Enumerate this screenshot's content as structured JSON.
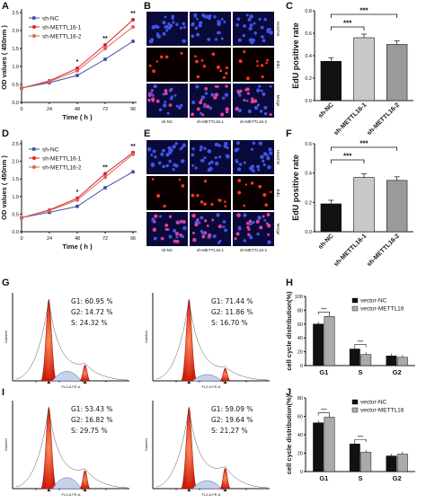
{
  "panels": {
    "A": "A",
    "B": "B",
    "C": "C",
    "D": "D",
    "E": "E",
    "F": "F",
    "G": "G",
    "H": "H",
    "I": "I",
    "J": "J"
  },
  "stain_labels": [
    "Hoechst",
    "EdU",
    "Merge"
  ],
  "sample_labels": [
    "sh-NC",
    "sh-METTL16-1",
    "sh-METTL16-2"
  ],
  "flow_stats": [
    [
      "G1: 60.95 %",
      "G2: 14.72 %",
      "S: 24.32 %"
    ],
    [
      "G1: 71.44 %",
      "G2: 11.86 %",
      "S: 16.70 %"
    ],
    [
      "G1: 53.43 %",
      "G2: 16.82 %",
      "S: 29.75 %"
    ],
    [
      "G1: 59.09 %",
      "G2: 19.64 %",
      "S: 21.27 %"
    ]
  ],
  "flow_axis": {
    "x": "FL2-A FE-A",
    "y": "Number"
  },
  "chart_data": [
    {
      "panel": "A",
      "type": "line",
      "x": [
        0,
        24,
        48,
        72,
        96
      ],
      "series": [
        {
          "name": "sh-NC",
          "values": [
            0.4,
            0.55,
            0.75,
            1.2,
            1.7
          ],
          "color": "#3a4fa6"
        },
        {
          "name": "sh-METTL16-1",
          "values": [
            0.4,
            0.6,
            0.95,
            1.6,
            2.3
          ],
          "color": "#d62728"
        },
        {
          "name": "sh-METTL16-2",
          "values": [
            0.4,
            0.58,
            0.88,
            1.5,
            2.1
          ],
          "color": "#e0605a"
        }
      ],
      "xlabel": "Time ( h )",
      "ylabel": "OD values ( 450nm )",
      "ylim": [
        0,
        2.5
      ],
      "yticks": [
        "0.0",
        "0.5",
        "1.0",
        "1.5",
        "2.0",
        "2.5"
      ],
      "annotations": [
        "*",
        "**",
        "**"
      ]
    },
    {
      "panel": "C",
      "type": "bar",
      "categories": [
        "sh-NC",
        "sh-METTL16-1",
        "sh-METTL16-2"
      ],
      "values": [
        0.35,
        0.56,
        0.5
      ],
      "colors": [
        "#111111",
        "#c8c8c8",
        "#9a9a9a"
      ],
      "ylabel": "EdU positive rate",
      "ylim": [
        0,
        0.8
      ],
      "yticks": [
        "0.0",
        "0.2",
        "0.4",
        "0.6",
        "0.8"
      ],
      "annotations": [
        "***",
        "***"
      ]
    },
    {
      "panel": "D",
      "type": "line",
      "x": [
        0,
        24,
        48,
        72,
        96
      ],
      "series": [
        {
          "name": "sh-NC",
          "values": [
            0.4,
            0.55,
            0.72,
            1.25,
            1.7
          ],
          "color": "#3a4fa6"
        },
        {
          "name": "sh-METTL16-1",
          "values": [
            0.4,
            0.62,
            0.95,
            1.65,
            2.25
          ],
          "color": "#d62728"
        },
        {
          "name": "sh-METTL16-2",
          "values": [
            0.4,
            0.6,
            0.9,
            1.55,
            2.2
          ],
          "color": "#e0605a"
        }
      ],
      "xlabel": "Time ( h )",
      "ylabel": "OD values ( 450nm )",
      "ylim": [
        0,
        2.5
      ],
      "yticks": [
        "0.0",
        "0.5",
        "1.0",
        "1.5",
        "2.0",
        "2.5"
      ],
      "annotations": [
        "*",
        "**",
        "**"
      ]
    },
    {
      "panel": "F",
      "type": "bar",
      "categories": [
        "sh-NC",
        "sh-METTL16-1",
        "sh-METTL16-2"
      ],
      "values": [
        0.19,
        0.37,
        0.35
      ],
      "colors": [
        "#111111",
        "#c8c8c8",
        "#9a9a9a"
      ],
      "ylabel": "EdU positive rate",
      "ylim": [
        0,
        0.6
      ],
      "yticks": [
        "0.0",
        "0.2",
        "0.4",
        "0.6"
      ],
      "annotations": [
        "***",
        "***"
      ]
    },
    {
      "panel": "H",
      "type": "bar",
      "categories": [
        "G1",
        "S",
        "G2"
      ],
      "series": [
        {
          "name": "vector-NC",
          "values": [
            60,
            24,
            14
          ],
          "color": "#111111"
        },
        {
          "name": "vector-METTL16",
          "values": [
            71,
            16,
            12
          ],
          "color": "#aaaaaa"
        }
      ],
      "ylabel": "cell cycle distribution(%)",
      "ylim": [
        0,
        100
      ],
      "yticks": [
        "0",
        "20",
        "40",
        "60",
        "80",
        "100"
      ],
      "annotations": [
        "***",
        "***"
      ]
    },
    {
      "panel": "J",
      "type": "bar",
      "categories": [
        "G1",
        "S",
        "G2"
      ],
      "series": [
        {
          "name": "vector-NC",
          "values": [
            53,
            30,
            17
          ],
          "color": "#111111"
        },
        {
          "name": "vector-METTL16",
          "values": [
            59,
            21,
            19
          ],
          "color": "#aaaaaa"
        }
      ],
      "ylabel": "cell cycle distribution(%)",
      "ylim": [
        0,
        80
      ],
      "yticks": [
        "0",
        "20",
        "40",
        "60",
        "80"
      ],
      "annotations": [
        "***",
        "***"
      ]
    }
  ]
}
